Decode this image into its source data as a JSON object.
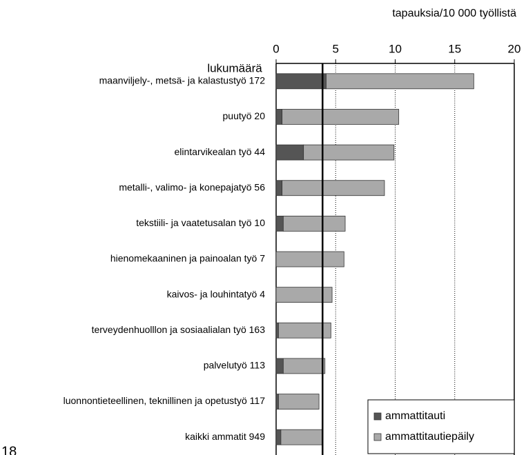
{
  "chart_data": {
    "type": "bar",
    "orientation": "horizontal",
    "stacked": true,
    "x_label": "tapauksia/10 000 työllistä",
    "category_axis_label": "lukumäärä",
    "page_number": "18",
    "categories": [
      "maanviljely-, metsä- ja kalastustyö 172",
      "puutyö 20",
      "elintarvikealan työ 44",
      "metalli-, valimo- ja konepajatyö 56",
      "tekstiili- ja vaatetusalan työ 10",
      "hienomekaaninen ja painoalan työ 7",
      "kaivos- ja louhintatyö 4",
      "terveydenhuolllon ja sosiaalialan työ 163",
      "palvelutyö 113",
      "luonnontieteellinen, teknillinen ja opetustyö 117",
      "kaikki ammatit 949"
    ],
    "series": [
      {
        "name": "ammattitauti",
        "color": "#555555",
        "values": [
          4.2,
          0.5,
          2.3,
          0.5,
          0.6,
          0,
          0,
          0.2,
          0.6,
          0.2,
          0.4
        ]
      },
      {
        "name": "ammattitautiepäily",
        "color": "#a9a9a9",
        "values": [
          12.4,
          9.8,
          7.6,
          8.6,
          5.2,
          5.7,
          4.7,
          4.4,
          3.5,
          3.4,
          3.5
        ]
      }
    ],
    "reference_line": 3.9,
    "xlim": [
      0,
      20
    ],
    "xticks": [
      0,
      5,
      10,
      15,
      20
    ],
    "grid": true,
    "legend": "bottom-right"
  }
}
